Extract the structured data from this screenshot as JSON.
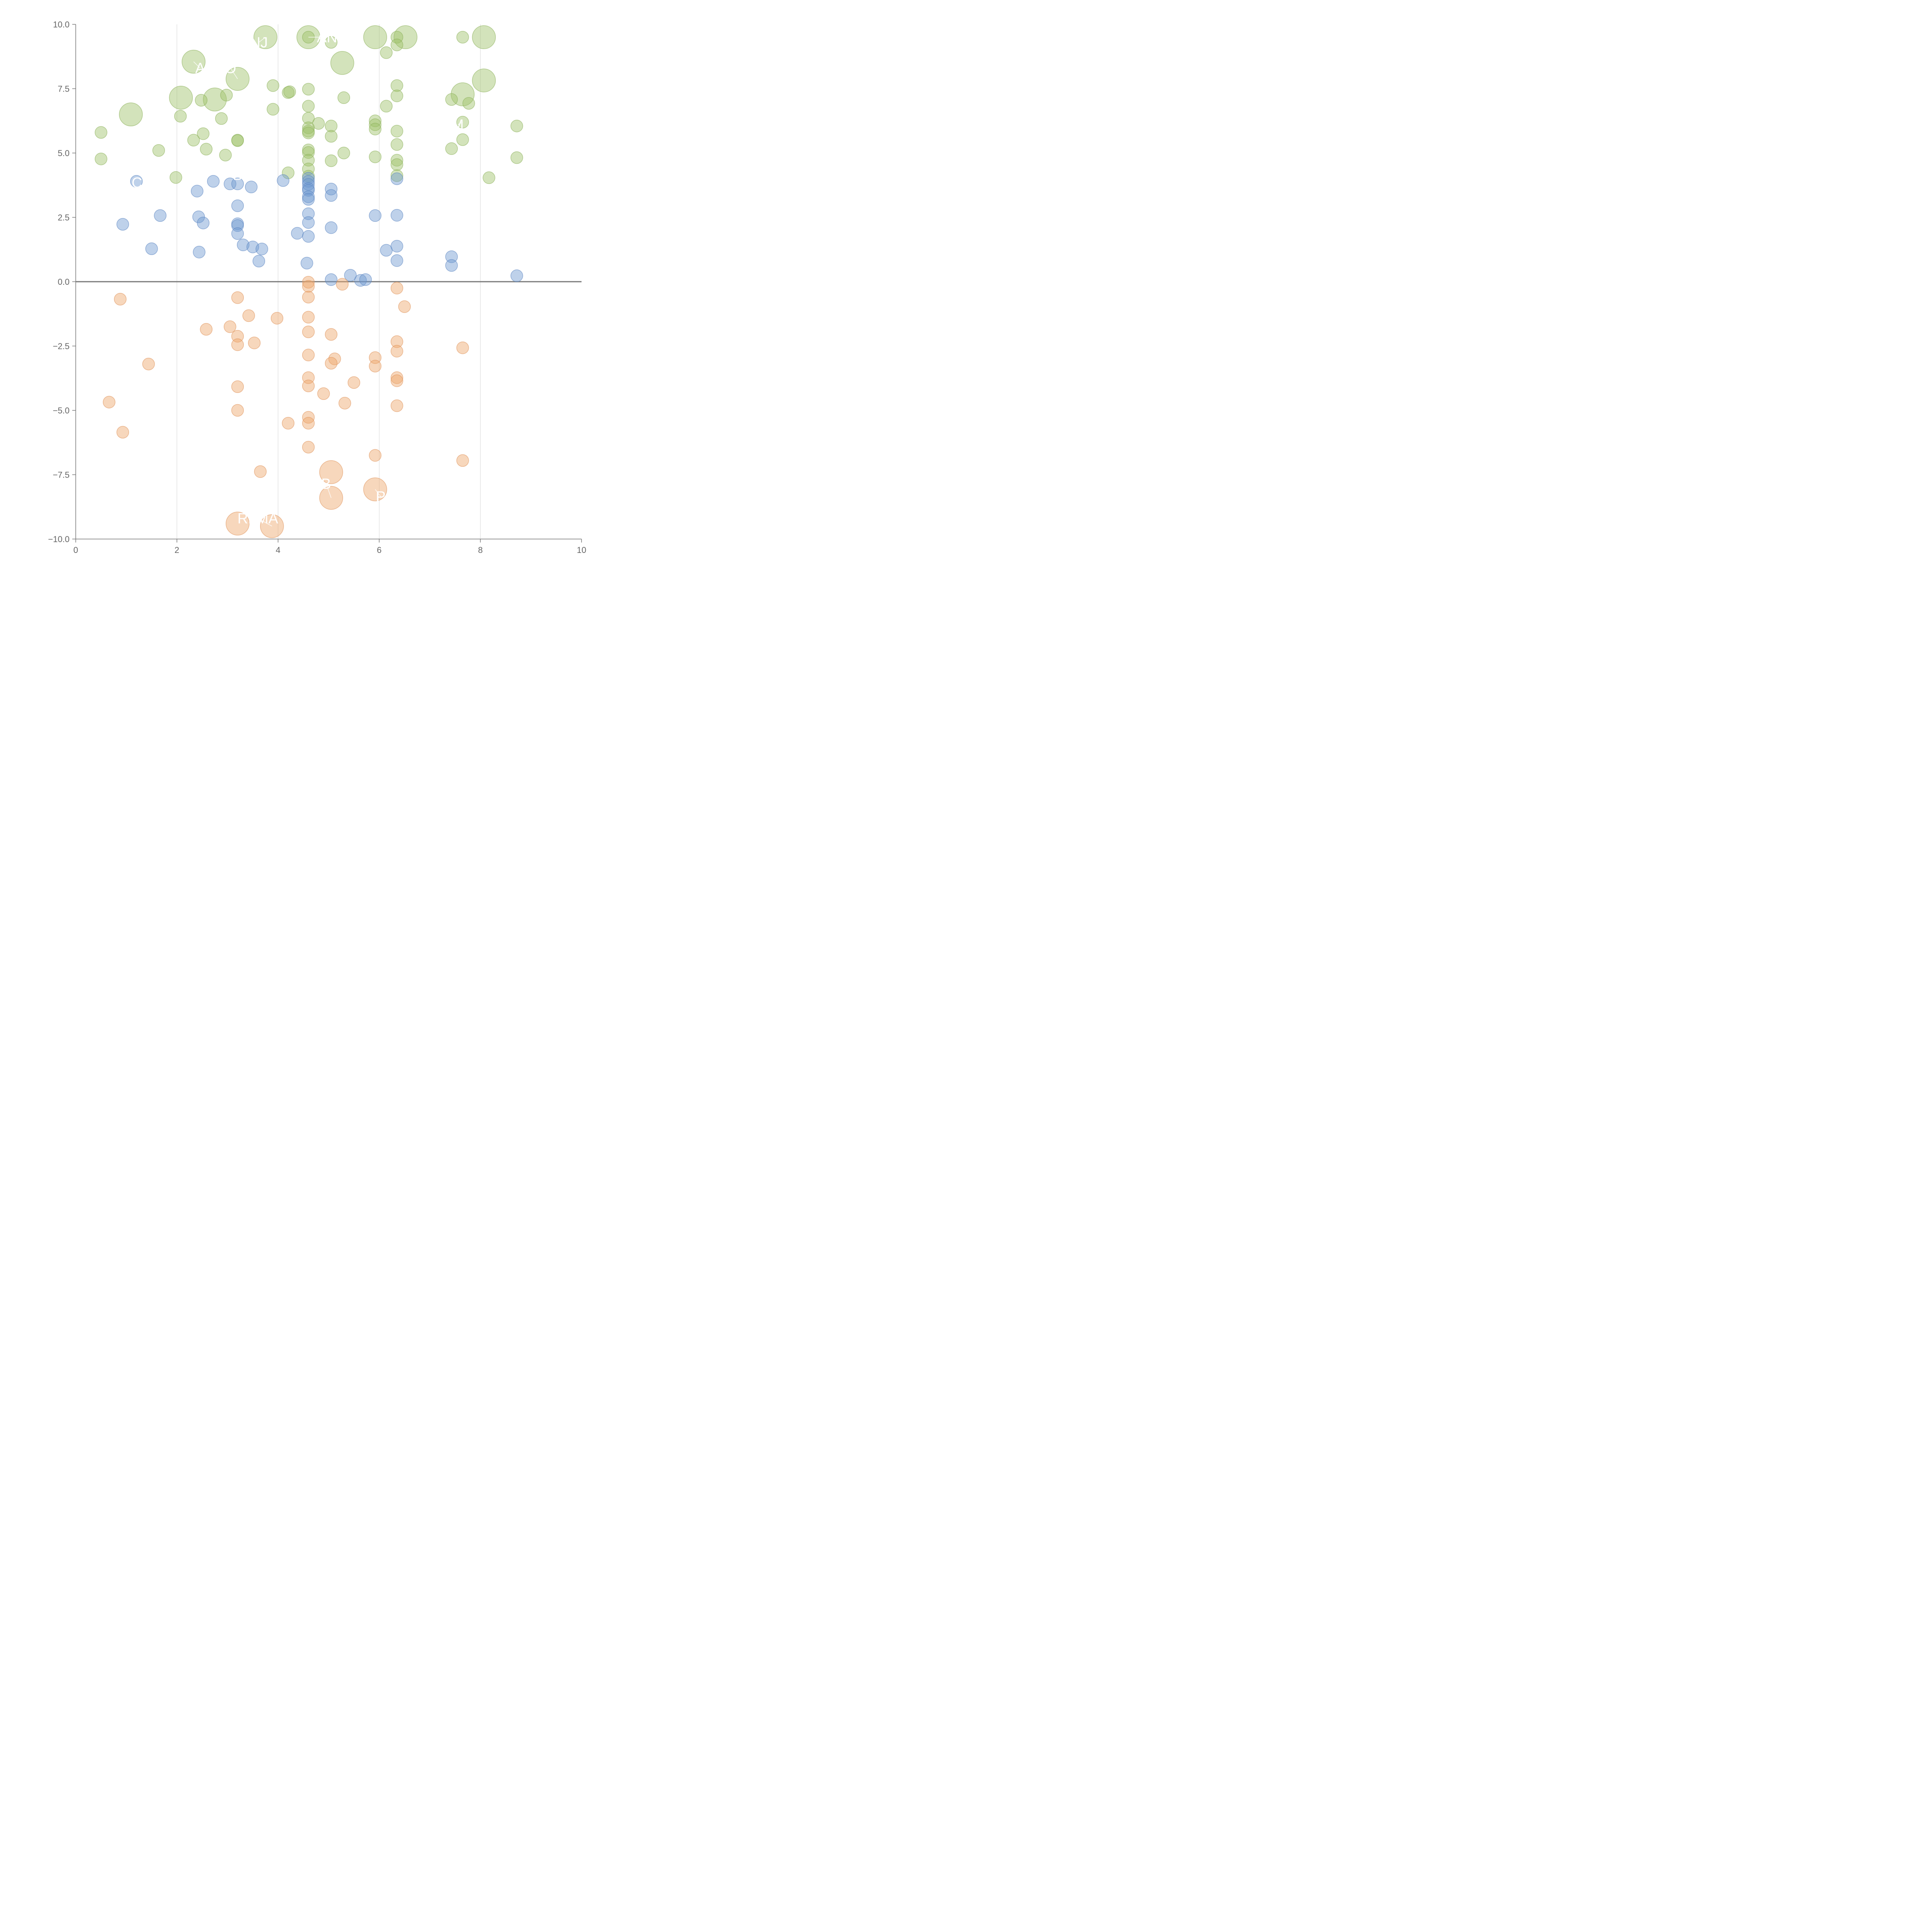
{
  "chart_data": {
    "type": "scatter",
    "title": "",
    "xlabel": "",
    "ylabel": "",
    "xlim": [
      0,
      10
    ],
    "ylim": [
      -10,
      10
    ],
    "x_ticks": [
      "0",
      "2",
      "4",
      "6",
      "8",
      "10"
    ],
    "y_ticks": [
      "10.0",
      "7.5",
      "5.0",
      "2.5",
      "0.0",
      "−2.5",
      "−5.0",
      "−7.5",
      "−10.0"
    ],
    "grid": "vertical",
    "zero_line": true,
    "colors": {
      "green": "#9dc169",
      "blue": "#6f99d1",
      "orange": "#eda66b",
      "outline_green": "#8cb05a",
      "outline_blue": "#5b86c2",
      "outline_orange": "#e0925a"
    },
    "series": [
      {
        "color": "green",
        "points": [
          {
            "x": 3.75,
            "y": 9.5,
            "big": true
          },
          {
            "x": 4.6,
            "y": 9.5,
            "big": true
          },
          {
            "x": 5.92,
            "y": 9.5,
            "big": true
          },
          {
            "x": 6.52,
            "y": 9.5,
            "big": true
          },
          {
            "x": 8.07,
            "y": 9.5,
            "big": true
          },
          {
            "x": 2.33,
            "y": 8.55,
            "big": true
          },
          {
            "x": 5.27,
            "y": 8.5,
            "big": true
          },
          {
            "x": 3.2,
            "y": 7.88,
            "big": true
          },
          {
            "x": 8.07,
            "y": 7.82,
            "big": true
          },
          {
            "x": 7.65,
            "y": 7.28,
            "big": true
          },
          {
            "x": 2.08,
            "y": 7.15,
            "big": true
          },
          {
            "x": 2.75,
            "y": 7.08,
            "big": true
          },
          {
            "x": 1.09,
            "y": 6.5,
            "big": true
          },
          {
            "x": 4.6,
            "y": 9.5
          },
          {
            "x": 5.05,
            "y": 9.3
          },
          {
            "x": 6.35,
            "y": 9.5
          },
          {
            "x": 6.35,
            "y": 9.2
          },
          {
            "x": 6.14,
            "y": 8.9
          },
          {
            "x": 7.65,
            "y": 9.5
          },
          {
            "x": 3.9,
            "y": 7.62
          },
          {
            "x": 4.2,
            "y": 7.35
          },
          {
            "x": 4.23,
            "y": 7.38
          },
          {
            "x": 4.6,
            "y": 7.48
          },
          {
            "x": 2.98,
            "y": 7.25
          },
          {
            "x": 2.48,
            "y": 7.05
          },
          {
            "x": 5.3,
            "y": 7.15
          },
          {
            "x": 6.35,
            "y": 7.62
          },
          {
            "x": 6.35,
            "y": 7.22
          },
          {
            "x": 7.43,
            "y": 7.08
          },
          {
            "x": 7.77,
            "y": 6.93
          },
          {
            "x": 6.14,
            "y": 6.82
          },
          {
            "x": 4.6,
            "y": 6.82
          },
          {
            "x": 3.9,
            "y": 6.7
          },
          {
            "x": 2.07,
            "y": 6.43
          },
          {
            "x": 2.88,
            "y": 6.34
          },
          {
            "x": 4.6,
            "y": 6.35
          },
          {
            "x": 5.92,
            "y": 6.25
          },
          {
            "x": 5.92,
            "y": 6.1
          },
          {
            "x": 5.92,
            "y": 5.93
          },
          {
            "x": 4.8,
            "y": 6.15
          },
          {
            "x": 5.05,
            "y": 6.05
          },
          {
            "x": 7.65,
            "y": 6.2
          },
          {
            "x": 8.72,
            "y": 6.05
          },
          {
            "x": 4.6,
            "y": 5.98
          },
          {
            "x": 4.6,
            "y": 5.85
          },
          {
            "x": 4.6,
            "y": 5.78
          },
          {
            "x": 6.35,
            "y": 5.85
          },
          {
            "x": 0.5,
            "y": 5.8
          },
          {
            "x": 2.52,
            "y": 5.75
          },
          {
            "x": 5.05,
            "y": 5.65
          },
          {
            "x": 2.33,
            "y": 5.5
          },
          {
            "x": 3.2,
            "y": 5.5
          },
          {
            "x": 3.2,
            "y": 5.48
          },
          {
            "x": 7.65,
            "y": 5.52
          },
          {
            "x": 6.35,
            "y": 5.33
          },
          {
            "x": 7.43,
            "y": 5.17
          },
          {
            "x": 1.64,
            "y": 5.1
          },
          {
            "x": 2.58,
            "y": 5.15
          },
          {
            "x": 4.6,
            "y": 5.12
          },
          {
            "x": 4.6,
            "y": 5.02
          },
          {
            "x": 5.3,
            "y": 5.0
          },
          {
            "x": 2.96,
            "y": 4.92
          },
          {
            "x": 5.92,
            "y": 4.85
          },
          {
            "x": 8.72,
            "y": 4.82
          },
          {
            "x": 0.5,
            "y": 4.77
          },
          {
            "x": 4.6,
            "y": 4.72
          },
          {
            "x": 5.05,
            "y": 4.7
          },
          {
            "x": 6.35,
            "y": 4.72
          },
          {
            "x": 6.35,
            "y": 4.55
          },
          {
            "x": 4.6,
            "y": 4.38
          },
          {
            "x": 4.2,
            "y": 4.23
          },
          {
            "x": 4.6,
            "y": 4.1
          },
          {
            "x": 6.35,
            "y": 4.12
          },
          {
            "x": 1.98,
            "y": 4.05
          },
          {
            "x": 8.17,
            "y": 4.04
          }
        ]
      },
      {
        "color": "blue",
        "points": [
          {
            "x": 1.2,
            "y": 3.9
          },
          {
            "x": 2.72,
            "y": 3.9
          },
          {
            "x": 4.1,
            "y": 3.93
          },
          {
            "x": 4.6,
            "y": 4.02
          },
          {
            "x": 4.6,
            "y": 3.9
          },
          {
            "x": 4.6,
            "y": 3.78
          },
          {
            "x": 4.6,
            "y": 3.62
          },
          {
            "x": 4.6,
            "y": 3.55
          },
          {
            "x": 4.6,
            "y": 3.3
          },
          {
            "x": 4.6,
            "y": 3.2
          },
          {
            "x": 3.05,
            "y": 3.8
          },
          {
            "x": 3.2,
            "y": 3.8
          },
          {
            "x": 3.47,
            "y": 3.68
          },
          {
            "x": 5.05,
            "y": 3.6
          },
          {
            "x": 5.05,
            "y": 3.35
          },
          {
            "x": 6.35,
            "y": 4.0
          },
          {
            "x": 2.4,
            "y": 3.52
          },
          {
            "x": 3.2,
            "y": 2.95
          },
          {
            "x": 4.6,
            "y": 2.64
          },
          {
            "x": 5.92,
            "y": 2.57
          },
          {
            "x": 6.35,
            "y": 2.58
          },
          {
            "x": 1.67,
            "y": 2.57
          },
          {
            "x": 2.43,
            "y": 2.52
          },
          {
            "x": 2.52,
            "y": 2.28
          },
          {
            "x": 4.6,
            "y": 2.3
          },
          {
            "x": 3.2,
            "y": 2.25
          },
          {
            "x": 3.2,
            "y": 2.18
          },
          {
            "x": 0.93,
            "y": 2.23
          },
          {
            "x": 5.05,
            "y": 2.1
          },
          {
            "x": 3.2,
            "y": 1.87
          },
          {
            "x": 4.38,
            "y": 1.88
          },
          {
            "x": 4.6,
            "y": 1.76
          },
          {
            "x": 3.31,
            "y": 1.43
          },
          {
            "x": 3.5,
            "y": 1.35
          },
          {
            "x": 3.68,
            "y": 1.27
          },
          {
            "x": 1.5,
            "y": 1.28
          },
          {
            "x": 2.44,
            "y": 1.15
          },
          {
            "x": 6.14,
            "y": 1.22
          },
          {
            "x": 6.35,
            "y": 1.38
          },
          {
            "x": 7.43,
            "y": 0.97
          },
          {
            "x": 7.43,
            "y": 0.63
          },
          {
            "x": 3.62,
            "y": 0.8
          },
          {
            "x": 6.35,
            "y": 0.82
          },
          {
            "x": 4.57,
            "y": 0.72
          },
          {
            "x": 5.43,
            "y": 0.25
          },
          {
            "x": 5.05,
            "y": 0.08
          },
          {
            "x": 5.63,
            "y": 0.05
          },
          {
            "x": 5.73,
            "y": 0.08
          },
          {
            "x": 8.72,
            "y": 0.23
          }
        ]
      },
      {
        "color": "orange",
        "points": [
          {
            "x": 4.6,
            "y": -0.02
          },
          {
            "x": 4.6,
            "y": -0.18
          },
          {
            "x": 5.27,
            "y": -0.1
          },
          {
            "x": 6.35,
            "y": -0.25
          },
          {
            "x": 4.6,
            "y": -0.6
          },
          {
            "x": 3.2,
            "y": -0.62
          },
          {
            "x": 0.88,
            "y": -0.68
          },
          {
            "x": 6.5,
            "y": -0.97
          },
          {
            "x": 3.42,
            "y": -1.32
          },
          {
            "x": 3.98,
            "y": -1.42
          },
          {
            "x": 4.6,
            "y": -1.38
          },
          {
            "x": 3.05,
            "y": -1.75
          },
          {
            "x": 2.58,
            "y": -1.85
          },
          {
            "x": 4.6,
            "y": -1.95
          },
          {
            "x": 5.05,
            "y": -2.05
          },
          {
            "x": 3.2,
            "y": -2.12
          },
          {
            "x": 6.35,
            "y": -2.33
          },
          {
            "x": 3.53,
            "y": -2.38
          },
          {
            "x": 3.2,
            "y": -2.45
          },
          {
            "x": 7.65,
            "y": -2.57
          },
          {
            "x": 6.35,
            "y": -2.7
          },
          {
            "x": 4.6,
            "y": -2.85
          },
          {
            "x": 5.92,
            "y": -2.95
          },
          {
            "x": 5.12,
            "y": -3.0
          },
          {
            "x": 5.05,
            "y": -3.17
          },
          {
            "x": 1.44,
            "y": -3.2
          },
          {
            "x": 5.92,
            "y": -3.28
          },
          {
            "x": 4.6,
            "y": -3.73
          },
          {
            "x": 6.35,
            "y": -3.73
          },
          {
            "x": 6.35,
            "y": -3.85
          },
          {
            "x": 5.5,
            "y": -3.92
          },
          {
            "x": 4.6,
            "y": -4.05
          },
          {
            "x": 3.2,
            "y": -4.08
          },
          {
            "x": 4.9,
            "y": -4.35
          },
          {
            "x": 0.66,
            "y": -4.68
          },
          {
            "x": 5.32,
            "y": -4.72
          },
          {
            "x": 6.35,
            "y": -4.82
          },
          {
            "x": 3.2,
            "y": -5.0
          },
          {
            "x": 4.6,
            "y": -5.27
          },
          {
            "x": 4.6,
            "y": -5.5
          },
          {
            "x": 4.2,
            "y": -5.5
          },
          {
            "x": 0.93,
            "y": -5.85
          },
          {
            "x": 4.6,
            "y": -6.43
          },
          {
            "x": 5.92,
            "y": -6.75
          },
          {
            "x": 7.65,
            "y": -6.95
          },
          {
            "x": 3.65,
            "y": -7.38
          },
          {
            "x": 5.05,
            "y": -7.4,
            "big": true
          },
          {
            "x": 5.92,
            "y": -8.07,
            "big": true
          },
          {
            "x": 5.05,
            "y": -8.4,
            "big": true
          },
          {
            "x": 3.2,
            "y": -9.4,
            "big": true
          },
          {
            "x": 3.88,
            "y": -9.5,
            "big": true
          }
        ]
      }
    ],
    "annotations": [
      {
        "text": "NJ",
        "x": 3.62,
        "y": 9.3,
        "px": 3.75,
        "py": 9.5
      },
      {
        "text": "AN",
        "x": 4.97,
        "y": 9.5,
        "px": 4.6,
        "py": 9.5
      },
      {
        "text": "A",
        "x": 2.46,
        "y": 8.3,
        "px": 2.33,
        "py": 8.55
      },
      {
        "text": "O",
        "x": 3.06,
        "y": 8.3,
        "px": 3.2,
        "py": 7.88
      },
      {
        "text": "M",
        "x": 7.55,
        "y": 6.1,
        "px": 7.65,
        "py": 6.2
      },
      {
        "text": "B",
        "x": 3.2,
        "y": 4.15,
        "px": 3.2,
        "py": 4.15
      },
      {
        "text": "C",
        "x": 1.21,
        "y": 3.85,
        "px": 1.2,
        "py": 3.9
      },
      {
        "text": "B",
        "x": 4.95,
        "y": -7.85,
        "px": 5.05,
        "py": -8.4
      },
      {
        "text": "P",
        "x": 6.03,
        "y": -8.35,
        "px": 5.92,
        "py": -8.07
      },
      {
        "text": "RLMA",
        "x": 3.6,
        "y": -9.2,
        "px": 3.88,
        "py": -9.5
      }
    ]
  }
}
